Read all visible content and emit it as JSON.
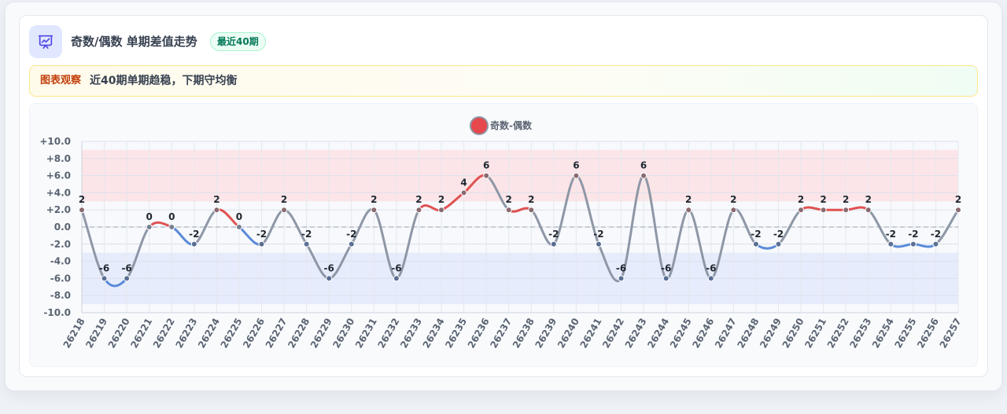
{
  "header": {
    "title": "奇数/偶数 单期差值走势",
    "badge": "最近40期",
    "icon": "presentation-chart-icon"
  },
  "insight": {
    "label": "图表观察",
    "text": "近40期单期趋稳，下期守均衡"
  },
  "colors": {
    "positive": "#e05252",
    "negative": "#5b8ad8",
    "neutral": "#8e97a6",
    "positive_band": "#fde2e4",
    "negative_band": "#e3eafc",
    "legend_dot": "#e5484d"
  },
  "chart_data": {
    "type": "line",
    "legend": [
      "奇数-偶数"
    ],
    "legend_position": "top-center",
    "categories": [
      "26218",
      "26219",
      "26220",
      "26221",
      "26222",
      "26223",
      "26224",
      "26225",
      "26226",
      "26227",
      "26228",
      "26229",
      "26230",
      "26231",
      "26232",
      "26233",
      "26234",
      "26235",
      "26236",
      "26237",
      "26238",
      "26239",
      "26240",
      "26241",
      "26242",
      "26243",
      "26244",
      "26245",
      "26246",
      "26247",
      "26248",
      "26249",
      "26250",
      "26251",
      "26252",
      "26253",
      "26254",
      "26255",
      "26256",
      "26257"
    ],
    "series": [
      {
        "name": "奇数-偶数",
        "values": [
          2,
          -6,
          -6,
          0,
          0,
          -2,
          2,
          0,
          -2,
          2,
          -2,
          -6,
          -2,
          2,
          -6,
          2,
          2,
          4,
          6,
          2,
          2,
          -2,
          6,
          -2,
          -6,
          6,
          -6,
          2,
          -6,
          2,
          -2,
          -2,
          2,
          2,
          2,
          2,
          -2,
          -2,
          -2,
          2
        ]
      }
    ],
    "yticks": [
      "+10.0",
      "+8.0",
      "+6.0",
      "+4.0",
      "+2.0",
      "0.0",
      "-2.0",
      "-4.0",
      "-6.0",
      "-8.0",
      "-10.0"
    ],
    "ylim": [
      -10,
      10
    ],
    "bands": [
      {
        "from": 3,
        "to": 9,
        "tone": "positive"
      },
      {
        "from": -9,
        "to": -3,
        "tone": "negative"
      }
    ],
    "zero_line": "dashed",
    "grid": true
  }
}
